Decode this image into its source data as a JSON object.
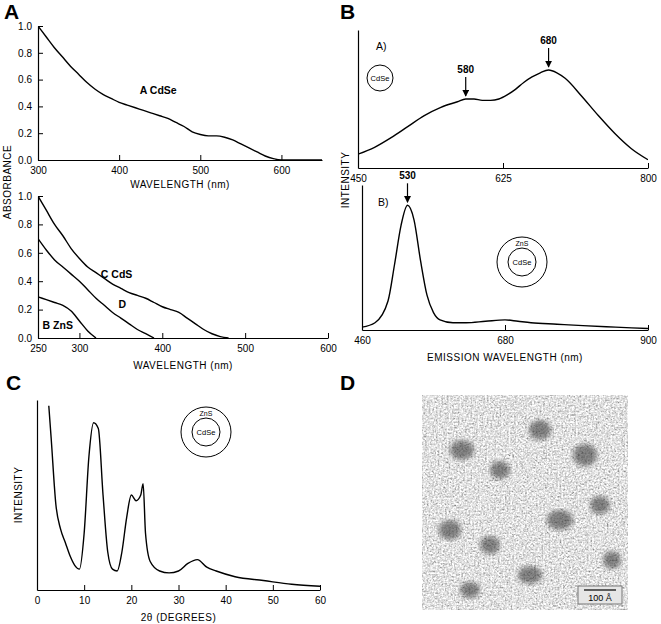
{
  "chart_data": [
    {
      "type": "line",
      "panel": "A",
      "x_label": "WAVELENGTH (nm)",
      "y_label": "ABSORBANCE",
      "xlim": [
        300,
        650
      ],
      "ylim": [
        0,
        1
      ],
      "xticks": [
        300,
        400,
        500,
        600
      ],
      "yticks": [
        {
          "value": 0,
          "label": "0.0"
        },
        0.2,
        0.4,
        0.6,
        0.8,
        {
          "value": 1,
          "label": "1.0"
        }
      ],
      "legend": false,
      "series": [
        {
          "name": "A CdSe",
          "color": "#000000",
          "x": [
            300,
            310,
            320,
            330,
            340,
            350,
            360,
            370,
            380,
            390,
            400,
            410,
            420,
            430,
            440,
            450,
            460,
            470,
            480,
            490,
            500,
            510,
            520,
            530,
            540,
            550,
            560,
            570,
            580,
            590,
            600,
            620,
            650
          ],
          "values": [
            1,
            0.92,
            0.84,
            0.77,
            0.7,
            0.64,
            0.58,
            0.53,
            0.49,
            0.46,
            0.43,
            0.41,
            0.39,
            0.37,
            0.35,
            0.33,
            0.31,
            0.28,
            0.25,
            0.21,
            0.19,
            0.18,
            0.18,
            0.17,
            0.15,
            0.12,
            0.09,
            0.06,
            0.03,
            0.01,
            0,
            0,
            0
          ]
        }
      ]
    },
    {
      "type": "line",
      "x_label": "WAVELENGTH (nm)",
      "xlim": [
        250,
        600
      ],
      "ylim": [
        0,
        1
      ],
      "xticks": [
        250,
        300,
        400,
        500,
        600
      ],
      "yticks": [
        {
          "value": 0,
          "label": "0.0"
        },
        0.2,
        0.4,
        0.6,
        0.8,
        {
          "value": 1,
          "label": "1.0"
        }
      ],
      "legend": false,
      "series": [
        {
          "name": "B ZnS",
          "color": "#000000",
          "x": [
            250,
            260,
            270,
            280,
            290,
            300,
            310,
            320
          ],
          "values": [
            0.29,
            0.27,
            0.25,
            0.23,
            0.19,
            0.12,
            0.05,
            0
          ]
        },
        {
          "name": "C CdS",
          "color": "#000000",
          "x": [
            250,
            260,
            270,
            280,
            290,
            300,
            310,
            320,
            330,
            340,
            350,
            360,
            370,
            380,
            390,
            400,
            410,
            420,
            430,
            440,
            450,
            460,
            470,
            480
          ],
          "values": [
            1,
            0.9,
            0.8,
            0.72,
            0.63,
            0.56,
            0.5,
            0.46,
            0.42,
            0.38,
            0.35,
            0.32,
            0.3,
            0.28,
            0.25,
            0.22,
            0.2,
            0.18,
            0.14,
            0.1,
            0.06,
            0.03,
            0.01,
            0
          ]
        },
        {
          "name": "D",
          "color": "#000000",
          "x": [
            250,
            260,
            270,
            280,
            290,
            300,
            310,
            320,
            330,
            340,
            350,
            360,
            370,
            380,
            390
          ],
          "values": [
            0.7,
            0.62,
            0.55,
            0.5,
            0.45,
            0.4,
            0.34,
            0.28,
            0.23,
            0.18,
            0.14,
            0.1,
            0.06,
            0.03,
            0
          ]
        }
      ]
    },
    {
      "type": "line",
      "panel": "B",
      "title": "A)",
      "y_label": "INTENSITY",
      "inset": {
        "core": "CdSe"
      },
      "xlim": [
        450,
        800
      ],
      "ylim": [
        0,
        1
      ],
      "xticks": [
        450,
        625,
        800
      ],
      "tick_labels": "x",
      "legend": false,
      "annotations": [
        {
          "label": "580",
          "x": 580
        },
        {
          "label": "680",
          "x": 680
        }
      ],
      "series": [
        {
          "color": "#000000",
          "x": [
            450,
            470,
            490,
            510,
            530,
            550,
            570,
            580,
            590,
            600,
            610,
            620,
            630,
            640,
            650,
            660,
            670,
            680,
            690,
            700,
            720,
            740,
            760,
            780,
            800
          ],
          "values": [
            0.1,
            0.15,
            0.22,
            0.3,
            0.38,
            0.44,
            0.48,
            0.5,
            0.5,
            0.49,
            0.49,
            0.5,
            0.53,
            0.57,
            0.62,
            0.66,
            0.69,
            0.71,
            0.69,
            0.65,
            0.52,
            0.38,
            0.25,
            0.14,
            0.06
          ]
        }
      ]
    },
    {
      "type": "line",
      "title": "B)",
      "x_label": "EMISSION WAVELENGTH (nm)",
      "inset": {
        "core": "CdSe",
        "shell": "ZnS"
      },
      "xlim": [
        460,
        900
      ],
      "ylim": [
        0,
        1
      ],
      "xticks": [
        460,
        680,
        900
      ],
      "tick_labels": "x",
      "legend": false,
      "annotations": [
        {
          "label": "530",
          "x": 530
        }
      ],
      "series": [
        {
          "color": "#000000",
          "x": [
            460,
            480,
            500,
            510,
            520,
            530,
            540,
            550,
            560,
            570,
            580,
            600,
            620,
            650,
            680,
            700,
            720,
            760,
            800,
            850,
            900
          ],
          "values": [
            0.02,
            0.05,
            0.2,
            0.45,
            0.72,
            0.86,
            0.76,
            0.48,
            0.24,
            0.12,
            0.07,
            0.05,
            0.05,
            0.06,
            0.07,
            0.06,
            0.05,
            0.04,
            0.03,
            0.02,
            0.01
          ]
        }
      ]
    },
    {
      "type": "line",
      "panel": "C",
      "x_label": "2θ (DEGREES)",
      "y_label": "INTENSITY",
      "inset": {
        "core": "CdSe",
        "shell": "ZnS"
      },
      "xlim": [
        0,
        60
      ],
      "ylim": [
        0,
        1
      ],
      "xticks": [
        0,
        10,
        20,
        30,
        40,
        50,
        60
      ],
      "tick_labels": "x",
      "legend": false,
      "series": [
        {
          "color": "#000000",
          "x": [
            2.5,
            3,
            4,
            5,
            6,
            7,
            8,
            9,
            10,
            11,
            12,
            13,
            14,
            15,
            16,
            17,
            18,
            19,
            20,
            21,
            22,
            22.5,
            23,
            24,
            26,
            28,
            30,
            32,
            34,
            36,
            38,
            42,
            48,
            54,
            60
          ],
          "values": [
            0.97,
            0.8,
            0.45,
            0.32,
            0.25,
            0.18,
            0.13,
            0.11,
            0.3,
            0.7,
            0.88,
            0.85,
            0.5,
            0.2,
            0.11,
            0.1,
            0.2,
            0.38,
            0.5,
            0.47,
            0.5,
            0.56,
            0.3,
            0.15,
            0.1,
            0.09,
            0.1,
            0.14,
            0.16,
            0.12,
            0.1,
            0.07,
            0.05,
            0.03,
            0.02
          ]
        }
      ]
    },
    {
      "type": "image",
      "panel": "D",
      "scale_bar": "100 Å"
    }
  ]
}
